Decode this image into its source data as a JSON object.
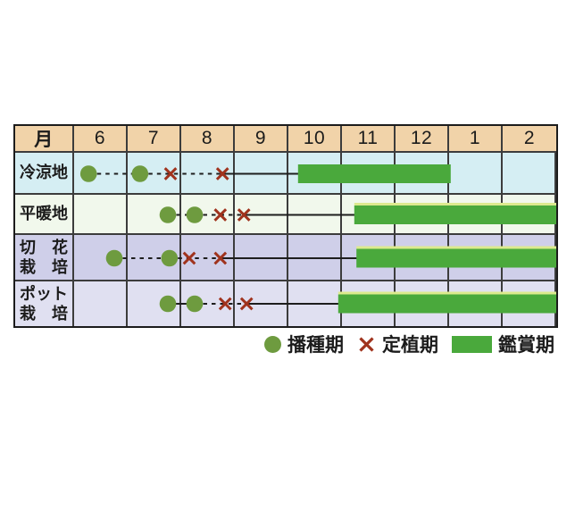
{
  "colors": {
    "page_bg": "#ffffff",
    "header_bg": "#f1d3a9",
    "grid_line": "#3c3c3c",
    "outer_border": "#1c1c1c",
    "timeline_line": "#1e1e1e",
    "sow_marker": "#6e9b3f",
    "plant_marker": "#a0331d",
    "view_bar": "#4aa93c",
    "bar_top_highlight": "#dcea8e",
    "text": "#1b1b1b"
  },
  "chart_data": {
    "type": "bar",
    "subtype": "horizontal-gantt-cultivation-calendar",
    "title": "",
    "x_axis": {
      "label": "月",
      "months": [
        "6",
        "7",
        "8",
        "9",
        "10",
        "11",
        "12",
        "1",
        "2"
      ],
      "scale_start": 6,
      "scale_end": 15,
      "note": "months 13,14 represent January and February of the following year"
    },
    "rows": [
      {
        "label": "冷涼地",
        "label_lines": [
          "冷涼地"
        ],
        "bg": "#d5eef3",
        "sow_months": [
          6.27,
          7.23
        ],
        "plant_months": [
          7.8,
          8.77
        ],
        "view_bar_months": [
          10.18,
          13.03
        ],
        "sow_link": "dashed",
        "bar_top_highlight": false
      },
      {
        "label": "平暖地",
        "label_lines": [
          "平暖地"
        ],
        "bg": "#f1f8ec",
        "sow_months": [
          7.75,
          8.25
        ],
        "plant_months": [
          8.73,
          9.17
        ],
        "view_bar_months": [
          11.23,
          15.0
        ],
        "sow_link": "dashed",
        "bar_top_highlight": true
      },
      {
        "label": "切花栽培",
        "label_lines": [
          "切　花",
          "栽　培"
        ],
        "bg": "#cfcfe9",
        "sow_months": [
          6.75,
          7.78
        ],
        "plant_months": [
          8.15,
          8.73
        ],
        "view_bar_months": [
          11.27,
          15.0
        ],
        "sow_link": "dashed",
        "bar_top_highlight": true
      },
      {
        "label": "ポット栽培",
        "label_lines": [
          "ポット",
          "栽　培"
        ],
        "bg": "#e0e0f1",
        "sow_months": [
          7.75,
          8.25
        ],
        "plant_months": [
          8.82,
          9.22
        ],
        "view_bar_months": [
          10.93,
          15.0
        ],
        "sow_link": "solid",
        "bar_top_highlight": true
      }
    ],
    "legend": [
      {
        "marker": "circle",
        "label": "播種期"
      },
      {
        "marker": "x",
        "label": "定植期"
      },
      {
        "marker": "bar",
        "label": "鑑賞期"
      }
    ],
    "legend_position": "bottom-right",
    "grid": true
  }
}
